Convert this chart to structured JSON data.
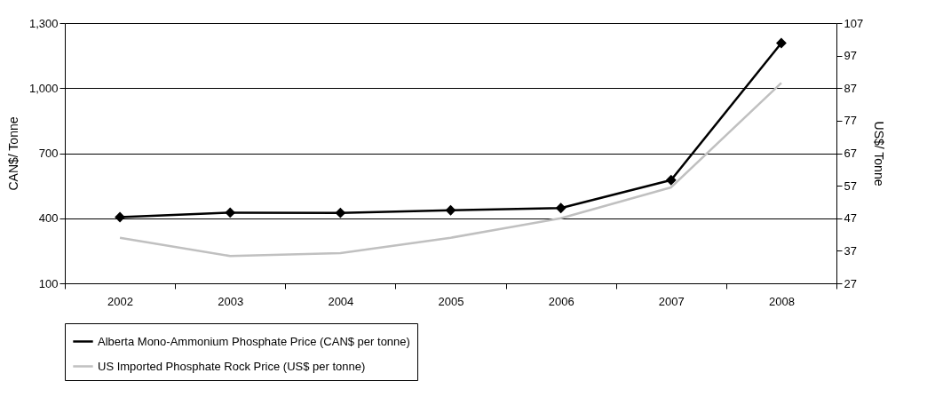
{
  "chart_data": {
    "type": "line",
    "ylabel": "CAN$/ Tonne",
    "y2label": "US$/ Tonne",
    "categories": [
      "2002",
      "2003",
      "2004",
      "2005",
      "2006",
      "2007",
      "2008"
    ],
    "series": [
      {
        "name": "Alberta Mono-Ammonium Phosphate Price (CAN$ per tonne)",
        "color": "#000000",
        "marker": "diamond",
        "values": [
          405,
          426,
          425,
          437,
          447,
          576,
          1208
        ]
      },
      {
        "name": "US Imported Phosphate Rock Price (US$ per tonne)",
        "color": "#c0c0c0",
        "axis": "y2",
        "marker": "none",
        "values": [
          41.0,
          35.4,
          36.3,
          41.0,
          47.0,
          56.5,
          88.6
        ]
      }
    ],
    "ylim": [
      100,
      1300
    ],
    "yticks": [
      100,
      {
        "value": 400,
        "label": "400"
      },
      {
        "value": 700,
        "label": "700"
      },
      {
        "value": 1000,
        "label": "1,000"
      },
      {
        "value": 1300,
        "label": "1,300"
      }
    ],
    "y2lim": [
      27,
      107
    ],
    "y2ticks": [
      27,
      37,
      47,
      57,
      67,
      77,
      87,
      97,
      107
    ],
    "grid": "y",
    "legend": "bottom"
  }
}
